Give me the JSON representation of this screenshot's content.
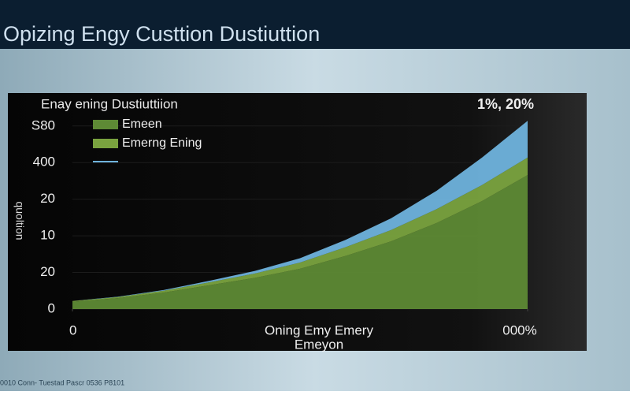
{
  "title": "Opizing Engy Custtion Dustiuttion",
  "footer": "0010 Conn- Tuestad Pascr 0536 P8101",
  "chart_data": {
    "type": "area",
    "stacked": true,
    "title": "Enay ening Dustiuttiion",
    "annotation": "1%, 20%",
    "ylabel": "quoltion",
    "xlabel_lines": [
      "Oning Emy Emery",
      "Emeyon"
    ],
    "x": [
      0,
      1,
      2,
      3,
      4,
      5,
      6,
      7,
      8,
      9,
      10
    ],
    "xlim": [
      0,
      10
    ],
    "xticks": [
      0,
      {
        "value": 10,
        "label": "000%"
      }
    ],
    "ylim": [
      0,
      5.9
    ],
    "yticks": [
      0,
      {
        "value": 1,
        "label": "20"
      },
      {
        "value": 2,
        "label": "10"
      },
      {
        "value": 3,
        "label": "20"
      },
      {
        "value": 4,
        "label": "400"
      },
      {
        "value": 5,
        "label": "S80"
      }
    ],
    "grid": true,
    "series": [
      {
        "name": "Emeen",
        "color": "#5e8a35",
        "values": [
          0.2,
          0.3,
          0.45,
          0.65,
          0.85,
          1.1,
          1.45,
          1.85,
          2.35,
          2.95,
          3.66
        ]
      },
      {
        "name": "Emerng Ening",
        "color": "#7aa33f",
        "values": [
          0.02,
          0.03,
          0.05,
          0.08,
          0.12,
          0.17,
          0.24,
          0.31,
          0.38,
          0.44,
          0.48
        ]
      },
      {
        "color": "#6fb3dd",
        "values": [
          0,
          0.01,
          0.02,
          0.04,
          0.07,
          0.12,
          0.2,
          0.32,
          0.5,
          0.75,
          1.0
        ]
      }
    ]
  }
}
